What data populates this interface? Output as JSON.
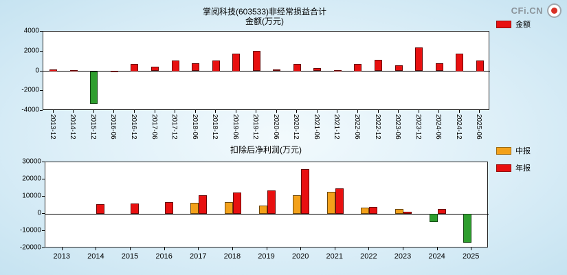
{
  "brand": {
    "text": "CFi.CN"
  },
  "chart_data": [
    {
      "type": "bar",
      "title": "掌阅科技(603533)非经常损益合计",
      "subtitle": "金额(万元)",
      "legend_position": "right-top-outside",
      "grid": false,
      "legend": [
        {
          "label": "金额",
          "color": "#e81010"
        }
      ],
      "categories": [
        "2013-12",
        "2014-12",
        "2015-12",
        "2016-06",
        "2016-12",
        "2017-06",
        "2017-12",
        "2018-06",
        "2018-12",
        "2019-06",
        "2019-12",
        "2020-06",
        "2020-12",
        "2021-06",
        "2021-12",
        "2022-06",
        "2022-12",
        "2023-06",
        "2023-12",
        "2024-06",
        "2024-12",
        "2025-06"
      ],
      "values": [
        150,
        100,
        -3300,
        30,
        700,
        420,
        1100,
        770,
        1050,
        1750,
        2030,
        170,
        700,
        280,
        100,
        700,
        1120,
        560,
        2380,
        770,
        1750,
        1050
      ],
      "ylim": [
        -4000,
        4000
      ],
      "yticks": [
        4000,
        2000,
        0,
        -2000,
        -4000
      ],
      "negative_color": "#2e9e2e"
    },
    {
      "type": "bar",
      "title": "扣除后净利润(万元)",
      "legend_position": "right-top-outside",
      "grid": false,
      "legend": [
        {
          "label": "中报",
          "color": "#f3a11a"
        },
        {
          "label": "年报",
          "color": "#e81010"
        }
      ],
      "categories": [
        "2013",
        "2014",
        "2015",
        "2016",
        "2017",
        "2018",
        "2019",
        "2020",
        "2021",
        "2022",
        "2023",
        "2024",
        "2025"
      ],
      "series": [
        {
          "name": "中报",
          "color": "#f3a11a",
          "values": [
            null,
            null,
            null,
            null,
            6400,
            6800,
            4800,
            10800,
            12800,
            3600,
            2800,
            -4800,
            -16800
          ]
        },
        {
          "name": "年报",
          "color": "#e81010",
          "values": [
            null,
            5600,
            6000,
            6800,
            10800,
            12400,
            13600,
            26000,
            14800,
            4000,
            1200,
            2800,
            null
          ]
        }
      ],
      "ylim": [
        -20000,
        30000
      ],
      "yticks": [
        30000,
        20000,
        10000,
        0,
        -10000,
        -20000
      ],
      "negative_color": "#2e9e2e"
    }
  ]
}
